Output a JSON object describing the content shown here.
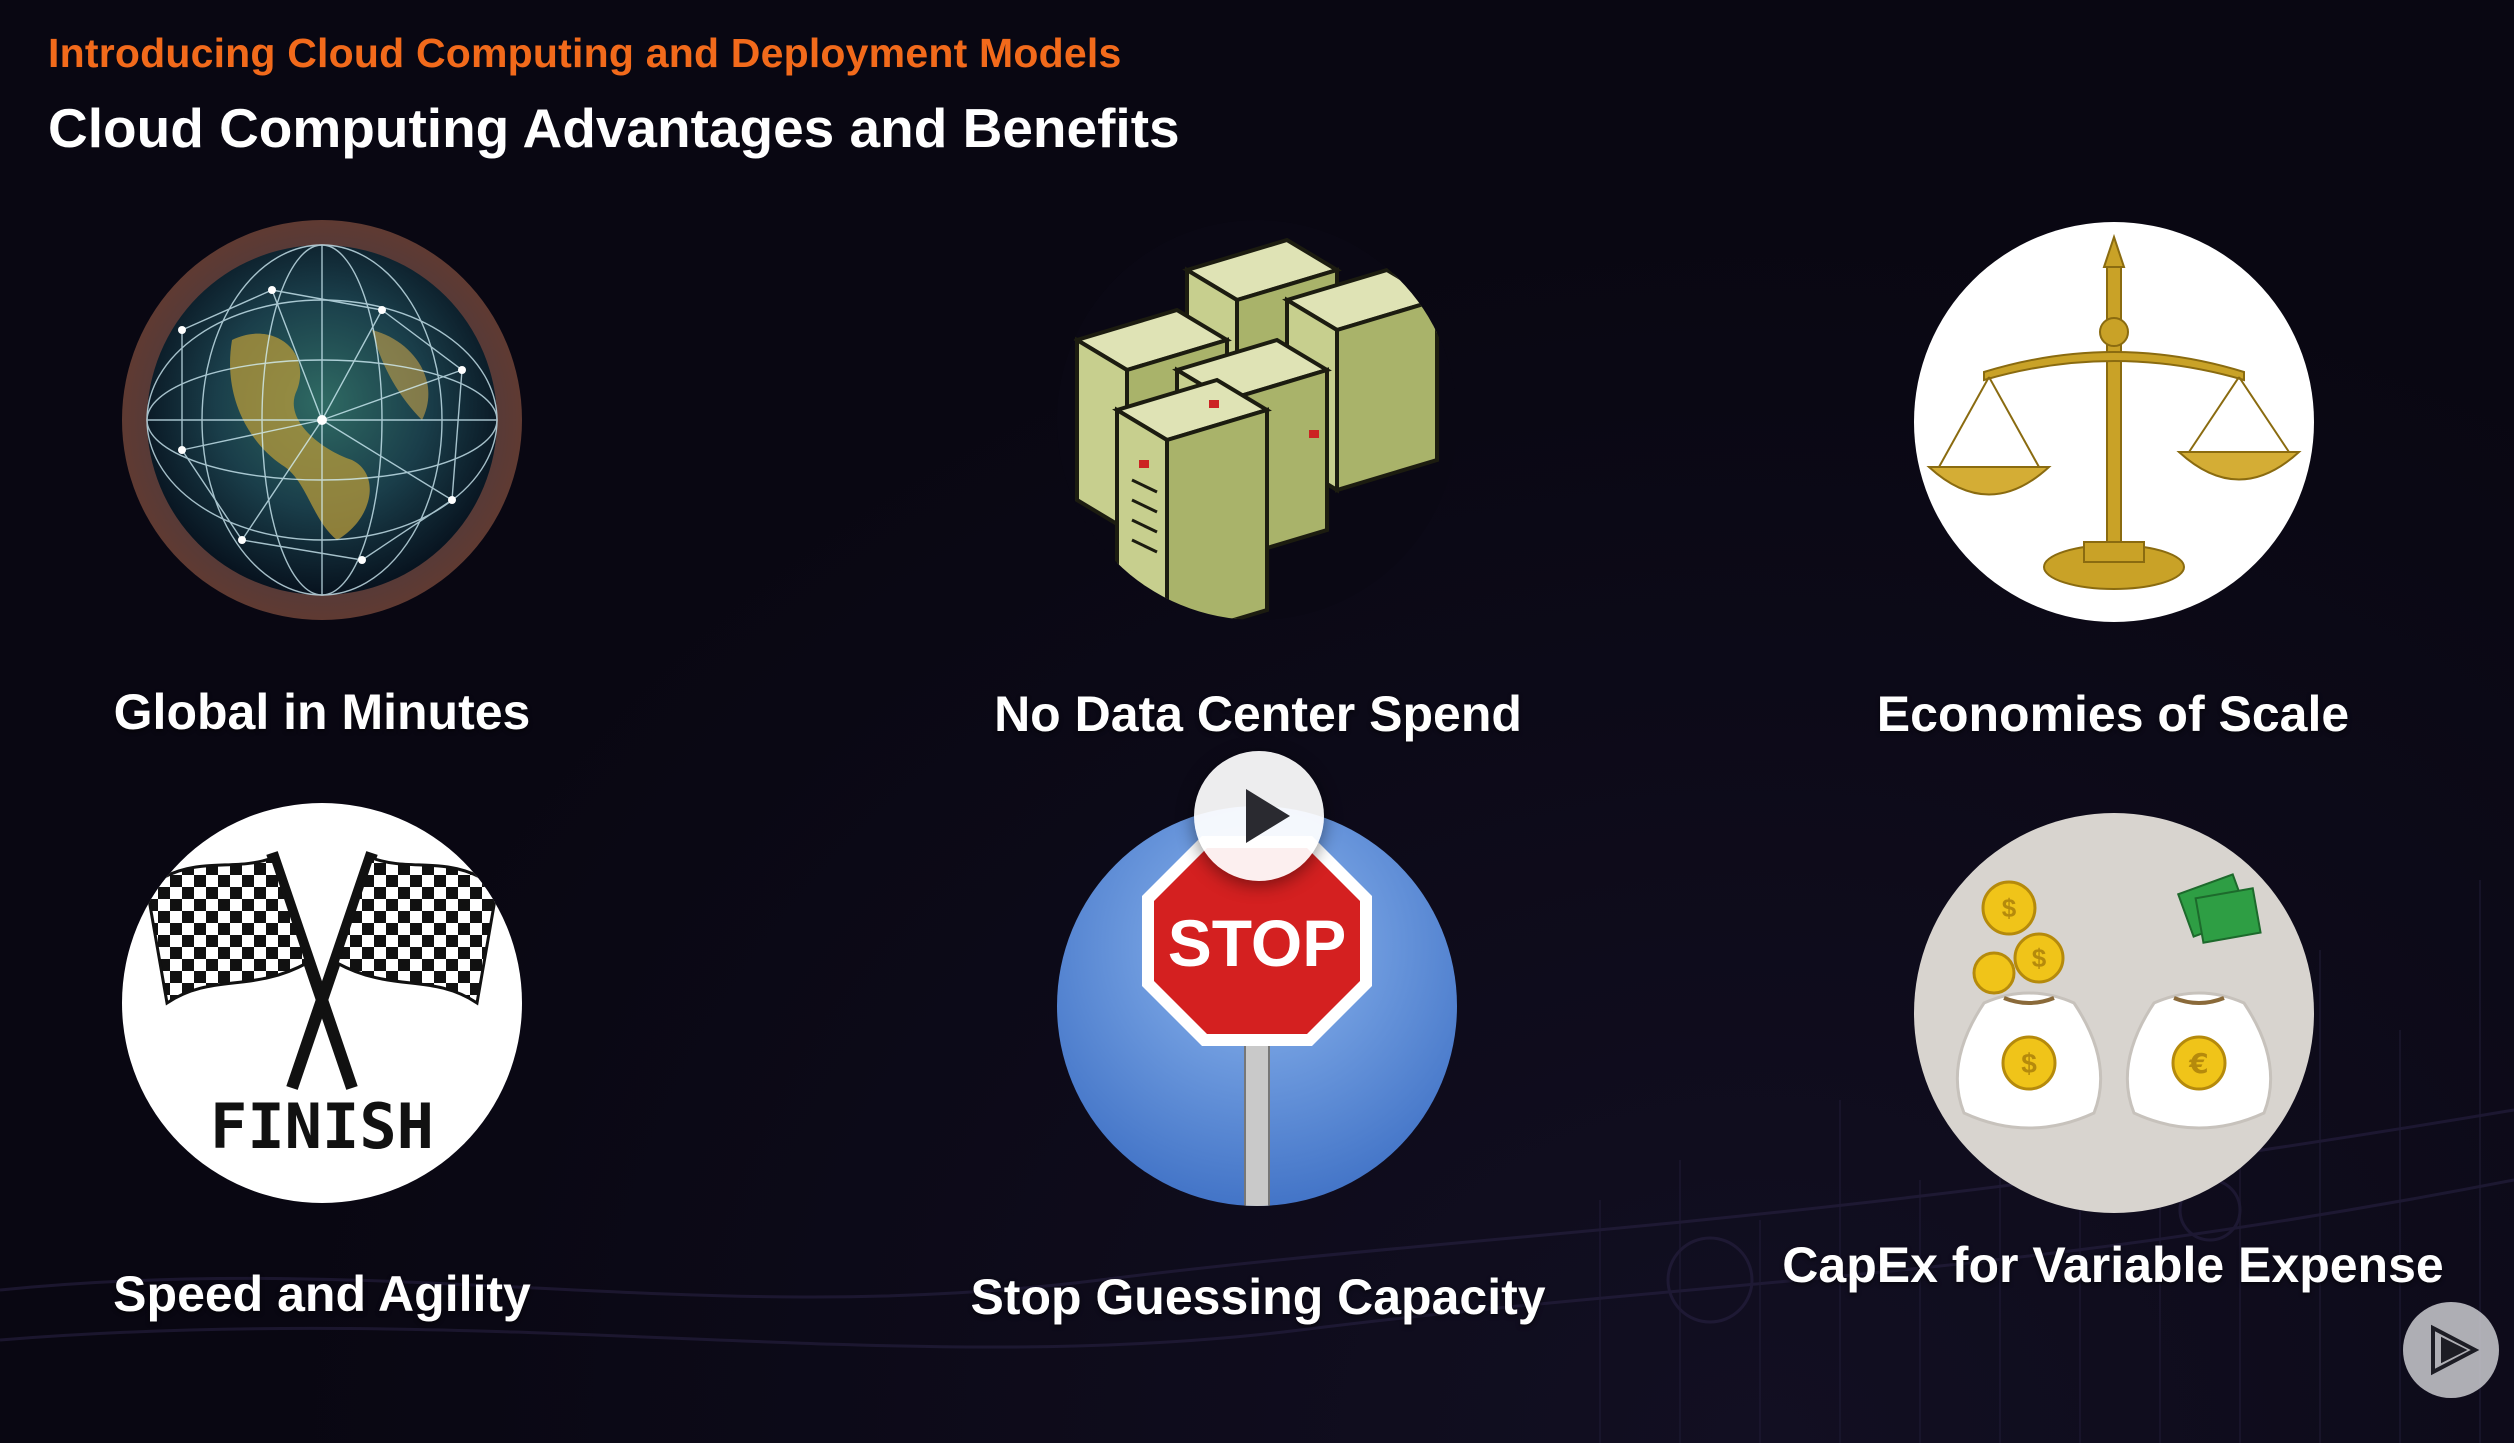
{
  "header": {
    "supertitle": "Introducing Cloud Computing and Deployment Models",
    "title": "Cloud Computing Advantages and Benefits"
  },
  "benefits": [
    {
      "label": "Global in Minutes",
      "icon": "globe-network-icon"
    },
    {
      "label": "No Data Center Spend",
      "icon": "servers-icon"
    },
    {
      "label": "Economies of Scale",
      "icon": "balance-scale-icon"
    },
    {
      "label": "Speed and Agility",
      "icon": "finish-flags-icon"
    },
    {
      "label": "Stop Guessing Capacity",
      "icon": "stop-sign-icon"
    },
    {
      "label": "CapEx for Variable Expense",
      "icon": "money-bags-icon"
    }
  ],
  "stop_sign_text": "STOP",
  "finish_text": "FINISH",
  "controls": {
    "play": "play-icon",
    "logo": "pluralsight-logo-icon"
  },
  "colors": {
    "accent": "#f26a1b",
    "background": "#090712",
    "text": "#ffffff"
  }
}
